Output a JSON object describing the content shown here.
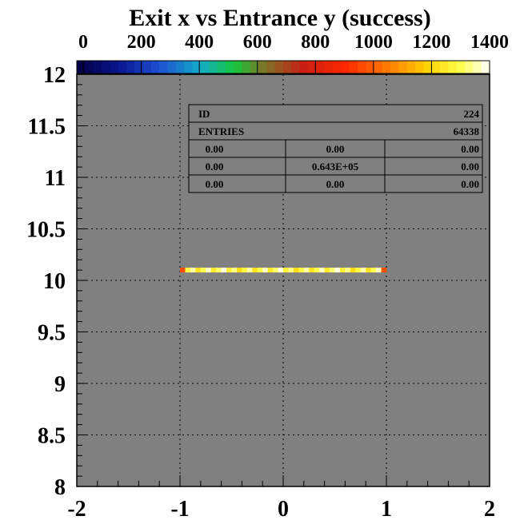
{
  "chart_data": {
    "type": "heatmap",
    "title": "Exit x vs Entrance y (success)",
    "xlabel": "",
    "ylabel": "",
    "xlim": [
      -2,
      2
    ],
    "ylim": [
      8,
      12
    ],
    "x_ticks": [
      "-2",
      "-1",
      "0",
      "1",
      "2"
    ],
    "y_ticks": [
      "8",
      "8.5",
      "9",
      "9.5",
      "10",
      "10.5",
      "11",
      "11.5",
      "12"
    ],
    "grid": true,
    "colorbar": {
      "range": [
        0,
        1400
      ],
      "ticks": [
        "0",
        "200",
        "400",
        "600",
        "800",
        "1000",
        "1200",
        "1400"
      ]
    },
    "band": {
      "x_range": [
        -1.0,
        1.0
      ],
      "y": 10.1,
      "typical_value": 1300
    },
    "stats_box": {
      "rows": [
        [
          "ID",
          "",
          "224"
        ],
        [
          "ENTRIES",
          "",
          "64338"
        ],
        [
          "0.00",
          "0.00",
          "0.00"
        ],
        [
          "0.00",
          "0.643E+05",
          "0.00"
        ],
        [
          "0.00",
          "0.00",
          "0.00"
        ]
      ]
    }
  },
  "colors": {
    "plot_background": "#808080",
    "grid": "#000000",
    "band_main": "#ffd700",
    "band_edge": "#ff4500"
  }
}
